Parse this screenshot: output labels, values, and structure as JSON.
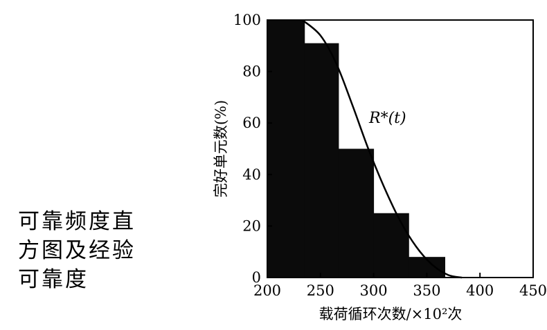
{
  "caption": {
    "line1": "可靠频度直",
    "line2": "方图及经验",
    "line3": "可靠度"
  },
  "chart_data": {
    "type": "bar",
    "bar_color": "#0b0b0b",
    "curve_color": "#000000",
    "xlabel": "载荷循环次数/×10²次",
    "ylabel": "完好单元数(%)",
    "xlim": [
      200,
      450
    ],
    "ylim": [
      0,
      100
    ],
    "xticks": [
      "200",
      "250",
      "300",
      "350",
      "400",
      "450"
    ],
    "yticks": [
      "100",
      "80",
      "60",
      "40",
      "20",
      "0"
    ],
    "bars": [
      {
        "x0": 200,
        "x1": 235,
        "value": 100
      },
      {
        "x0": 235,
        "x1": 267,
        "value": 91
      },
      {
        "x0": 267,
        "x1": 300,
        "value": 50
      },
      {
        "x0": 300,
        "x1": 333,
        "value": 25
      },
      {
        "x0": 333,
        "x1": 367,
        "value": 8
      }
    ],
    "curve": {
      "name": "R*(t)",
      "x": [
        233,
        250,
        265,
        280,
        295,
        310,
        325,
        340,
        355,
        370,
        383
      ],
      "y": [
        100,
        94,
        83,
        67,
        50,
        35,
        22,
        12,
        5,
        1,
        0
      ]
    }
  }
}
